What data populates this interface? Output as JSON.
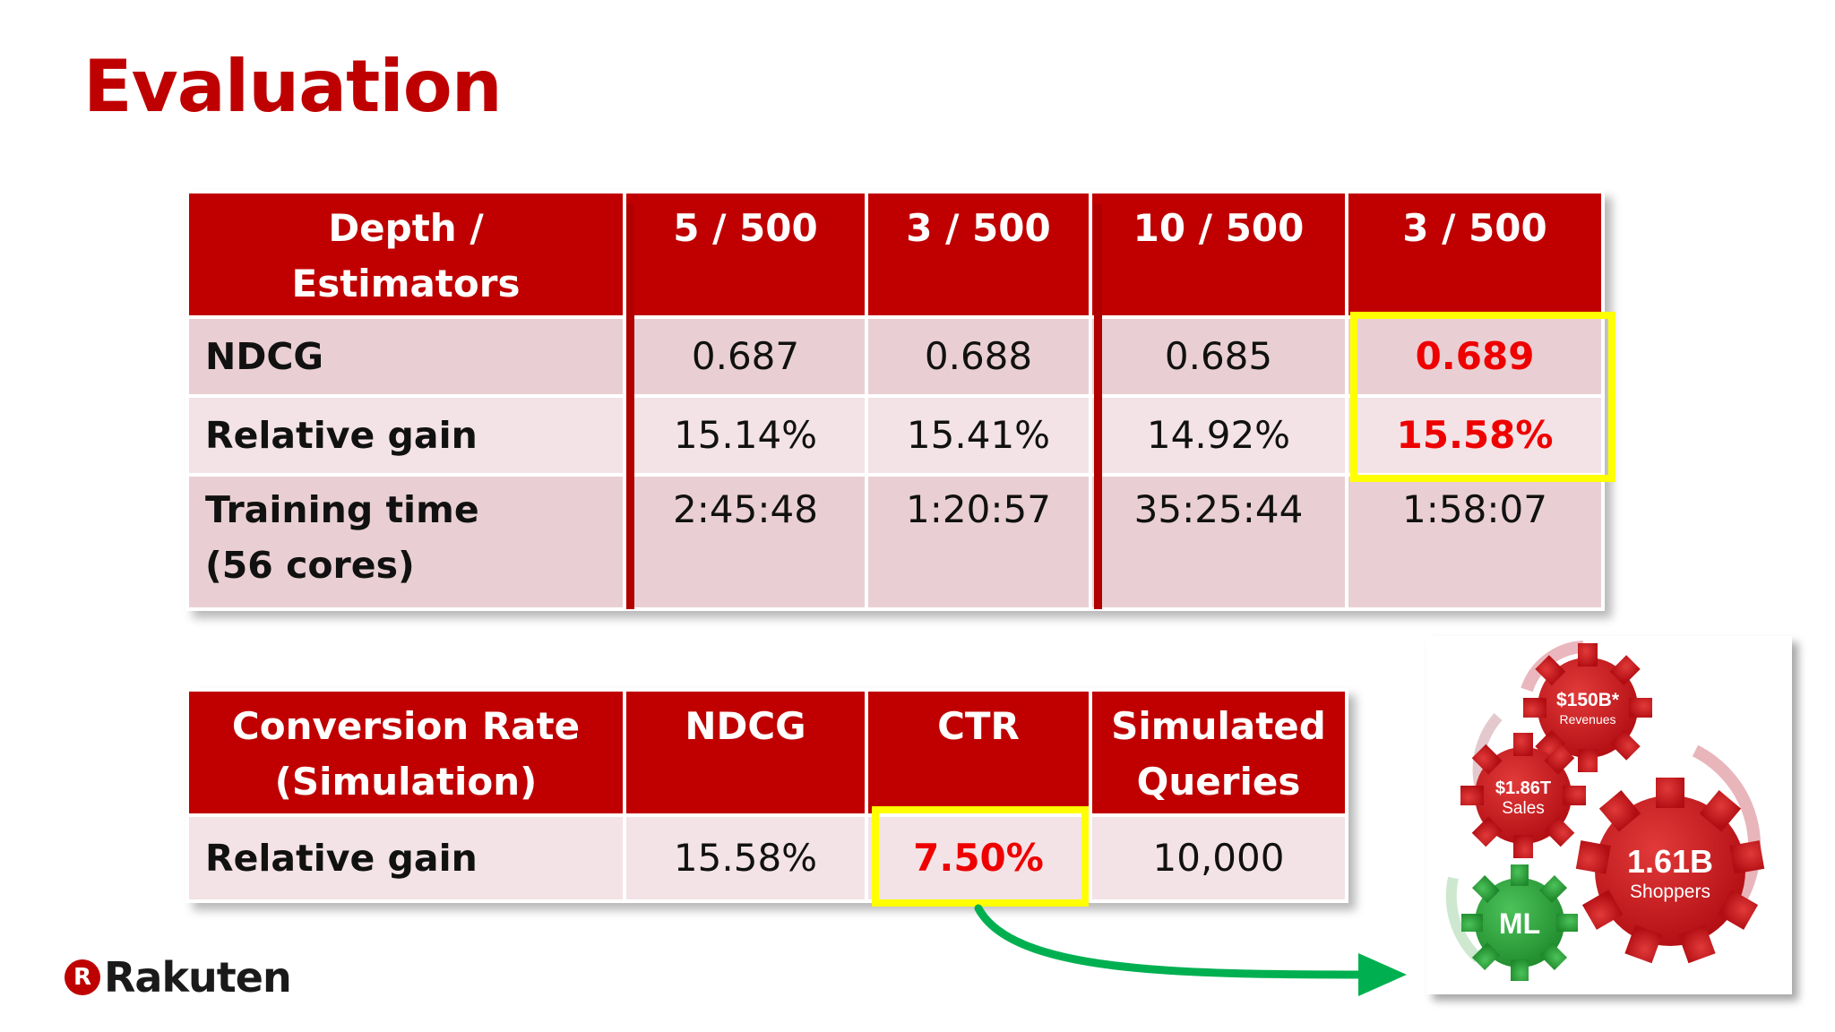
{
  "title": "Evaluation",
  "table1": {
    "header": [
      "Depth /\nEstimators",
      "5 / 500",
      "3 / 500",
      "10 / 500",
      "3 / 500"
    ],
    "rows": [
      {
        "label": "NDCG",
        "values": [
          "0.687",
          "0.688",
          "0.685",
          "0.689"
        ]
      },
      {
        "label": "Relative gain",
        "values": [
          "15.14%",
          "15.41%",
          "14.92%",
          "15.58%"
        ]
      },
      {
        "label": "Training time\n(56 cores)",
        "values": [
          "2:45:48",
          "1:20:57",
          "35:25:44",
          "1:58:07"
        ]
      }
    ]
  },
  "table2": {
    "header": [
      "Conversion Rate\n(Simulation)",
      "NDCG",
      "CTR",
      "Simulated\nQueries"
    ],
    "rows": [
      {
        "label": "Relative gain",
        "values": [
          "15.58%",
          "7.50%",
          "10,000"
        ]
      }
    ]
  },
  "logo": {
    "mark": "R",
    "text": "Rakuten"
  },
  "gears": {
    "revenues_value": "$150B*",
    "revenues_label": "Revenues",
    "sales_value": "$1.86T",
    "sales_label": "Sales",
    "shoppers_value": "1.61B",
    "shoppers_label": "Shoppers",
    "ml_label": "ML"
  },
  "colors": {
    "brand_red": "#bf0000",
    "header_red": "#c00000",
    "highlight_text": "#ee0000",
    "highlight_box": "#ffff00",
    "arrow_green": "#00b050",
    "gear_green": "#2e9e3a"
  }
}
